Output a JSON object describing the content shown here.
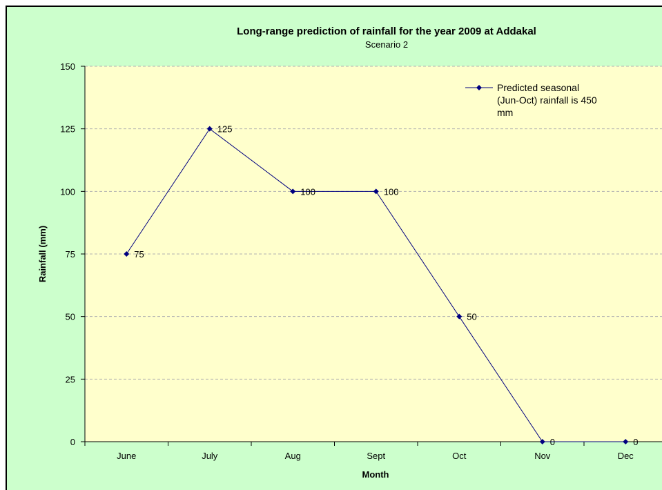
{
  "chart_data": {
    "type": "line",
    "title": "Long-range prediction of rainfall for the year 2009 at Addakal",
    "subtitle": "Scenario 2",
    "xlabel": "Month",
    "ylabel": "Rainfall (mm)",
    "categories": [
      "June",
      "July",
      "Aug",
      "Sept",
      "Oct",
      "Nov",
      "Dec"
    ],
    "series": [
      {
        "name": "Predicted seasonal (Jun-Oct) rainfall is 450 mm",
        "legend_lines": [
          "Predicted seasonal",
          "(Jun-Oct) rainfall is 450",
          "mm"
        ],
        "values": [
          75,
          125,
          100,
          100,
          50,
          0,
          0
        ],
        "color": "#000080"
      }
    ],
    "ylim": [
      0,
      150
    ],
    "yticks": [
      0,
      25,
      50,
      75,
      100,
      125,
      150
    ],
    "grid": true,
    "legend_position": "top-right",
    "colors": {
      "background": "#ccffcc",
      "plot_area": "#ffffcc",
      "gridline": "#b0b0b0"
    }
  }
}
